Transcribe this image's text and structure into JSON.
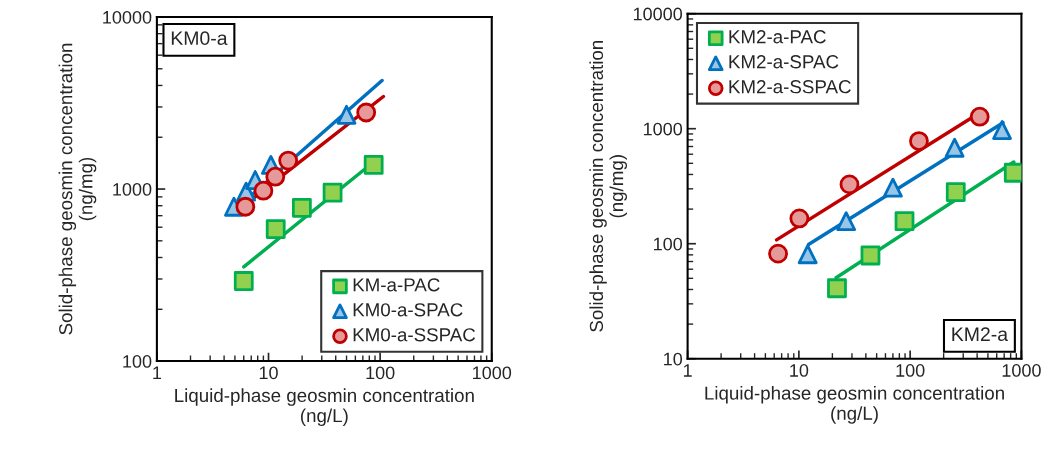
{
  "chart_data": [
    {
      "type": "scatter",
      "xlabel": "Liquid-phase geosmin concentration\n(ng/L)",
      "ylabel": "Solid-phase geosmin concentration\n(ng/mg)",
      "log": "xy",
      "xlim": [
        1,
        1000
      ],
      "ylim": [
        100,
        10000
      ],
      "xticks": [
        1,
        10,
        100,
        1000
      ],
      "yticks": [
        100,
        1000,
        10000
      ],
      "grid": false,
      "legend": "bottom right",
      "annotations": [
        "KM0-a"
      ],
      "series": [
        {
          "name": "KM-a-PAC",
          "color": "#00b050",
          "marker": "square",
          "x": [
            6.0,
            11.6,
            19.9,
            37.5,
            87.5
          ],
          "values": [
            292,
            585,
            778,
            952,
            1380
          ]
        },
        {
          "name": "KM0-a-SPAC",
          "color": "#0070c0",
          "marker": "triangle",
          "x": [
            4.9,
            6.3,
            7.6,
            10.5,
            50
          ],
          "values": [
            789,
            965,
            1128,
            1380,
            2700
          ]
        },
        {
          "name": "KM0-a-SSPAC",
          "color": "#c00000",
          "marker": "circle",
          "x": [
            6.2,
            9.0,
            11.5,
            15.0,
            75
          ],
          "values": [
            789,
            978,
            1180,
            1463,
            2785
          ]
        },
        {
          "type": "line",
          "color": "#00b050",
          "marker": "none",
          "x": [
            6.0,
            92
          ],
          "values": [
            353,
            1475
          ]
        },
        {
          "type": "line",
          "color": "#0070c0",
          "marker": "none",
          "x": [
            4.6,
            104
          ],
          "values": [
            722,
            4275
          ]
        },
        {
          "type": "line",
          "color": "#c00000",
          "marker": "none",
          "x": [
            5.85,
            107
          ],
          "values": [
            789,
            3450
          ]
        }
      ]
    },
    {
      "type": "scatter",
      "xlabel": "Liquid-phase geosmin concentration\n(ng/L)",
      "ylabel": "Solid-phase geosmin concentration\n(ng/mg)",
      "log": "xy",
      "xlim": [
        1,
        1000
      ],
      "ylim": [
        10,
        10000
      ],
      "xticks": [
        1,
        10,
        100,
        1000
      ],
      "yticks": [
        10,
        100,
        1000,
        10000
      ],
      "grid": false,
      "legend": "top left",
      "annotations": [
        "KM2-a"
      ],
      "series": [
        {
          "name": "KM2-a-PAC",
          "color": "#00b050",
          "marker": "square",
          "x": [
            22,
            44,
            89,
            257,
            854
          ],
          "values": [
            41,
            79,
            157,
            281,
            414
          ]
        },
        {
          "name": "KM2-a-SPAC",
          "color": "#0070c0",
          "marker": "triangle",
          "x": [
            12,
            26.6,
            70,
            251,
            670
          ],
          "values": [
            81,
            157,
            307,
            683,
            974
          ]
        },
        {
          "name": "KM2-a-SSPAC",
          "color": "#c00000",
          "marker": "circle",
          "x": [
            6.5,
            10.1,
            28.5,
            120,
            422
          ],
          "values": [
            82,
            166,
            328,
            781,
            1271
          ]
        },
        {
          "type": "line",
          "color": "#00b050",
          "marker": "none",
          "x": [
            21.6,
            854
          ],
          "values": [
            50.6,
            513
          ]
        },
        {
          "type": "line",
          "color": "#0070c0",
          "marker": "none",
          "x": [
            12.2,
            684
          ],
          "values": [
            98.6,
            1128
          ]
        },
        {
          "type": "line",
          "color": "#c00000",
          "marker": "none",
          "x": [
            6.3,
            422
          ],
          "values": [
            108,
            1378
          ]
        }
      ]
    }
  ]
}
